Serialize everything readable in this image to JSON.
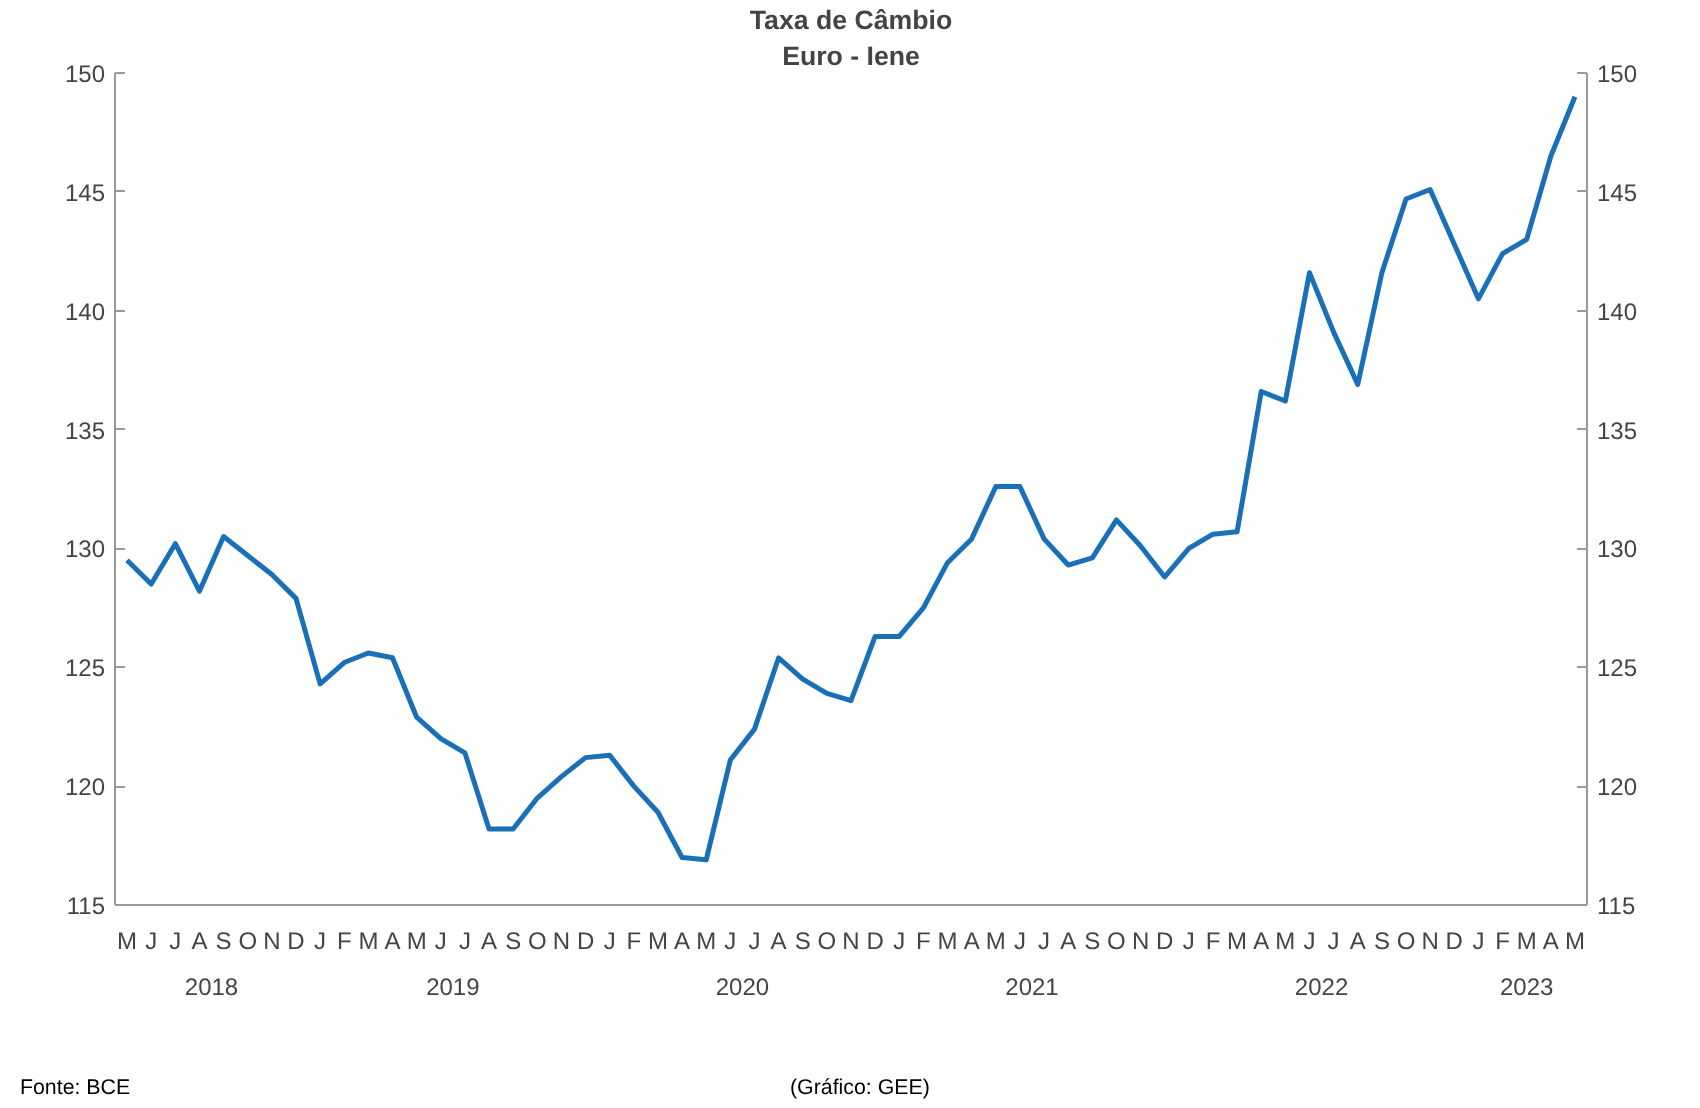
{
  "chart_data": {
    "type": "line",
    "title": "Taxa de Câmbio",
    "subtitle": "Euro - Iene",
    "categories": [
      "M",
      "J",
      "J",
      "A",
      "S",
      "O",
      "N",
      "D",
      "J",
      "F",
      "M",
      "A",
      "M",
      "J",
      "J",
      "A",
      "S",
      "O",
      "N",
      "D",
      "J",
      "F",
      "M",
      "A",
      "M",
      "J",
      "J",
      "A",
      "S",
      "O",
      "N",
      "D",
      "J",
      "F",
      "M",
      "A",
      "M",
      "J",
      "J",
      "A",
      "S",
      "O",
      "N",
      "D",
      "J",
      "F",
      "M",
      "A",
      "M",
      "J",
      "J",
      "A",
      "S",
      "O",
      "N",
      "D",
      "J",
      "F",
      "M",
      "A",
      "M"
    ],
    "series": [
      {
        "color": "#1a70b8",
        "values": [
          129.5,
          128.5,
          130.2,
          128.2,
          130.5,
          129.7,
          128.9,
          127.9,
          124.3,
          125.2,
          125.6,
          125.4,
          122.9,
          122.0,
          121.4,
          118.2,
          118.2,
          119.5,
          120.4,
          121.2,
          121.3,
          120.0,
          118.9,
          117.0,
          116.9,
          121.1,
          122.4,
          125.4,
          124.5,
          123.9,
          123.6,
          126.3,
          126.3,
          127.5,
          129.4,
          130.4,
          132.6,
          132.6,
          130.4,
          129.3,
          129.6,
          131.2,
          130.1,
          128.8,
          130.0,
          130.6,
          130.7,
          136.6,
          136.2,
          141.6,
          139.1,
          136.9,
          141.6,
          144.7,
          145.1,
          142.8,
          140.5,
          142.4,
          143.0,
          146.5,
          149.0
        ]
      }
    ],
    "ylim": [
      115,
      150
    ],
    "yticks": [
      115,
      120,
      125,
      130,
      135,
      140,
      145,
      150
    ],
    "y2lim": [
      115,
      150
    ],
    "y2ticks": [
      115,
      120,
      125,
      130,
      135,
      140,
      145,
      150
    ],
    "grid": false,
    "marker": "none",
    "line_style": "solid",
    "annotations": [
      "2018",
      "2019",
      "2020",
      "2021",
      "2022",
      "2023",
      "Fonte: BCE",
      "(Gráfico: GEE)"
    ]
  }
}
